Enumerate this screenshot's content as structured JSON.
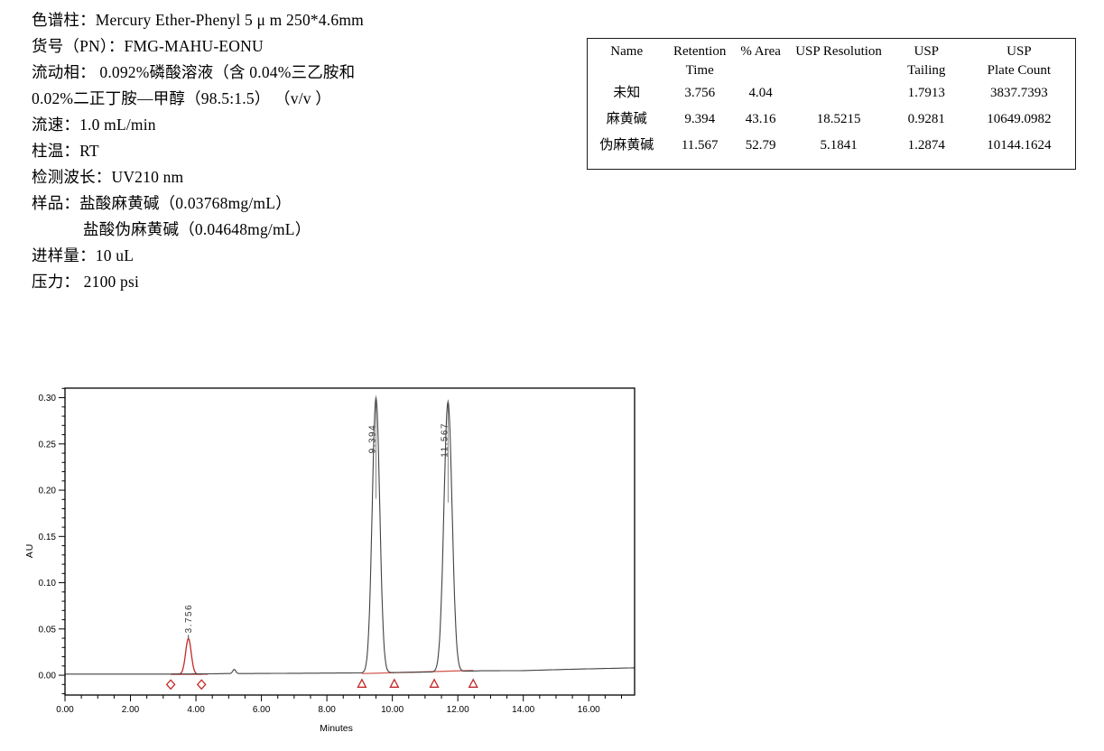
{
  "conditions": {
    "lines": [
      {
        "text": "色谱柱：Mercury Ether-Phenyl  5 μ m 250*4.6mm"
      },
      {
        "text": "货号（PN）：FMG-MAHU-EONU"
      },
      {
        "text": "流动相： 0.092%磷酸溶液（含 0.04%三乙胺和"
      },
      {
        "text": "0.02%二正丁胺—甲醇（98.5:1.5） （v/v ）"
      },
      {
        "text": "流速：1.0 mL/min"
      },
      {
        "text": "柱温：RT"
      },
      {
        "text": "检测波长：UV210 nm"
      },
      {
        "text": "样品：盐酸麻黄碱（0.03768mg/mL）"
      },
      {
        "text": "盐酸伪麻黄碱（0.04648mg/mL）"
      },
      {
        "text": "进样量：10 uL"
      },
      {
        "text": "压力： 2100 psi"
      }
    ]
  },
  "table": {
    "header_row1": [
      "Name",
      "Retention",
      "% Area",
      "USP Resolution",
      "USP",
      "USP"
    ],
    "header_row2": [
      "",
      "Time",
      "",
      "",
      "Tailing",
      "Plate Count"
    ],
    "rows": [
      [
        "未知",
        "3.756",
        "4.04",
        "",
        "1.7913",
        "3837.7393"
      ],
      [
        "麻黄碱",
        "9.394",
        "43.16",
        "18.5215",
        "0.9281",
        "10649.0982"
      ],
      [
        "伪麻黄碱",
        "11.567",
        "52.79",
        "5.1841",
        "1.2874",
        "10144.1624"
      ]
    ]
  },
  "chart_data": {
    "type": "line",
    "title": "",
    "xlabel": "Minutes",
    "ylabel": "AU",
    "xlim": [
      0,
      17.4
    ],
    "ylim": [
      -0.0214,
      0.3103
    ],
    "x_major_ticks": [
      0,
      2,
      4,
      6,
      8,
      10,
      12,
      14,
      16
    ],
    "x_tick_labels": [
      "0.00",
      "2.00",
      "4.00",
      "6.00",
      "8.00",
      "10.00",
      "12.00",
      "14.00",
      "16.00"
    ],
    "x_minor_step": 0.5,
    "y_major_ticks": [
      0,
      0.05,
      0.1,
      0.15,
      0.2,
      0.25,
      0.3
    ],
    "y_tick_labels": [
      "0.00",
      "0.05",
      "0.10",
      "0.15",
      "0.20",
      "0.25",
      "0.30"
    ],
    "y_minor_step": 0.01,
    "grid": false,
    "colors": {
      "trace": "#424242",
      "unknown_peak": "#c22a2a",
      "integration_marker": "#c22a2a",
      "integration_baseline": "#d45c55",
      "axis": "#000000"
    },
    "peaks": [
      {
        "name": "未知",
        "label": "3.756",
        "rt": 3.756,
        "height_au": 0.0385,
        "sigma_min": 0.085,
        "trace": "red",
        "draw_center": 3.77,
        "local_base": 0.0012
      },
      {
        "name": "麻黄碱",
        "label": "9.394",
        "rt": 9.394,
        "height_au": 0.2975,
        "sigma_min": 0.115,
        "trace": "main",
        "draw_center": 9.5
      },
      {
        "name": "伪麻黄碱",
        "label": "11.567",
        "rt": 11.567,
        "height_au": 0.292,
        "sigma_min": 0.125,
        "trace": "main",
        "draw_center": 11.7
      }
    ],
    "trace_baseline_points": [
      [
        0,
        0.0012
      ],
      [
        3.1,
        0.0012
      ],
      [
        4.4,
        0.0015
      ],
      [
        4.9,
        0.0018
      ],
      [
        5.45,
        0.0018
      ],
      [
        9.0,
        0.0025
      ],
      [
        10.2,
        0.003
      ],
      [
        11.2,
        0.0035
      ],
      [
        12.7,
        0.0048
      ],
      [
        14.0,
        0.005
      ],
      [
        15.5,
        0.0065
      ],
      [
        17.4,
        0.008
      ]
    ],
    "trace_bumps": [
      {
        "center": 5.17,
        "height": 0.0045,
        "sigma": 0.045
      }
    ],
    "integration": {
      "baseline_segments": [
        [
          [
            3.23,
            0.001
          ],
          [
            4.17,
            0.001
          ]
        ],
        [
          [
            9.07,
            0.0018
          ],
          [
            12.47,
            0.0052
          ]
        ]
      ],
      "diamond_markers_x": [
        3.23,
        4.17
      ],
      "diamond_y": -0.01,
      "triangle_markers_x": [
        9.07,
        10.06,
        11.28,
        12.47
      ],
      "triangle_y": -0.009
    }
  }
}
